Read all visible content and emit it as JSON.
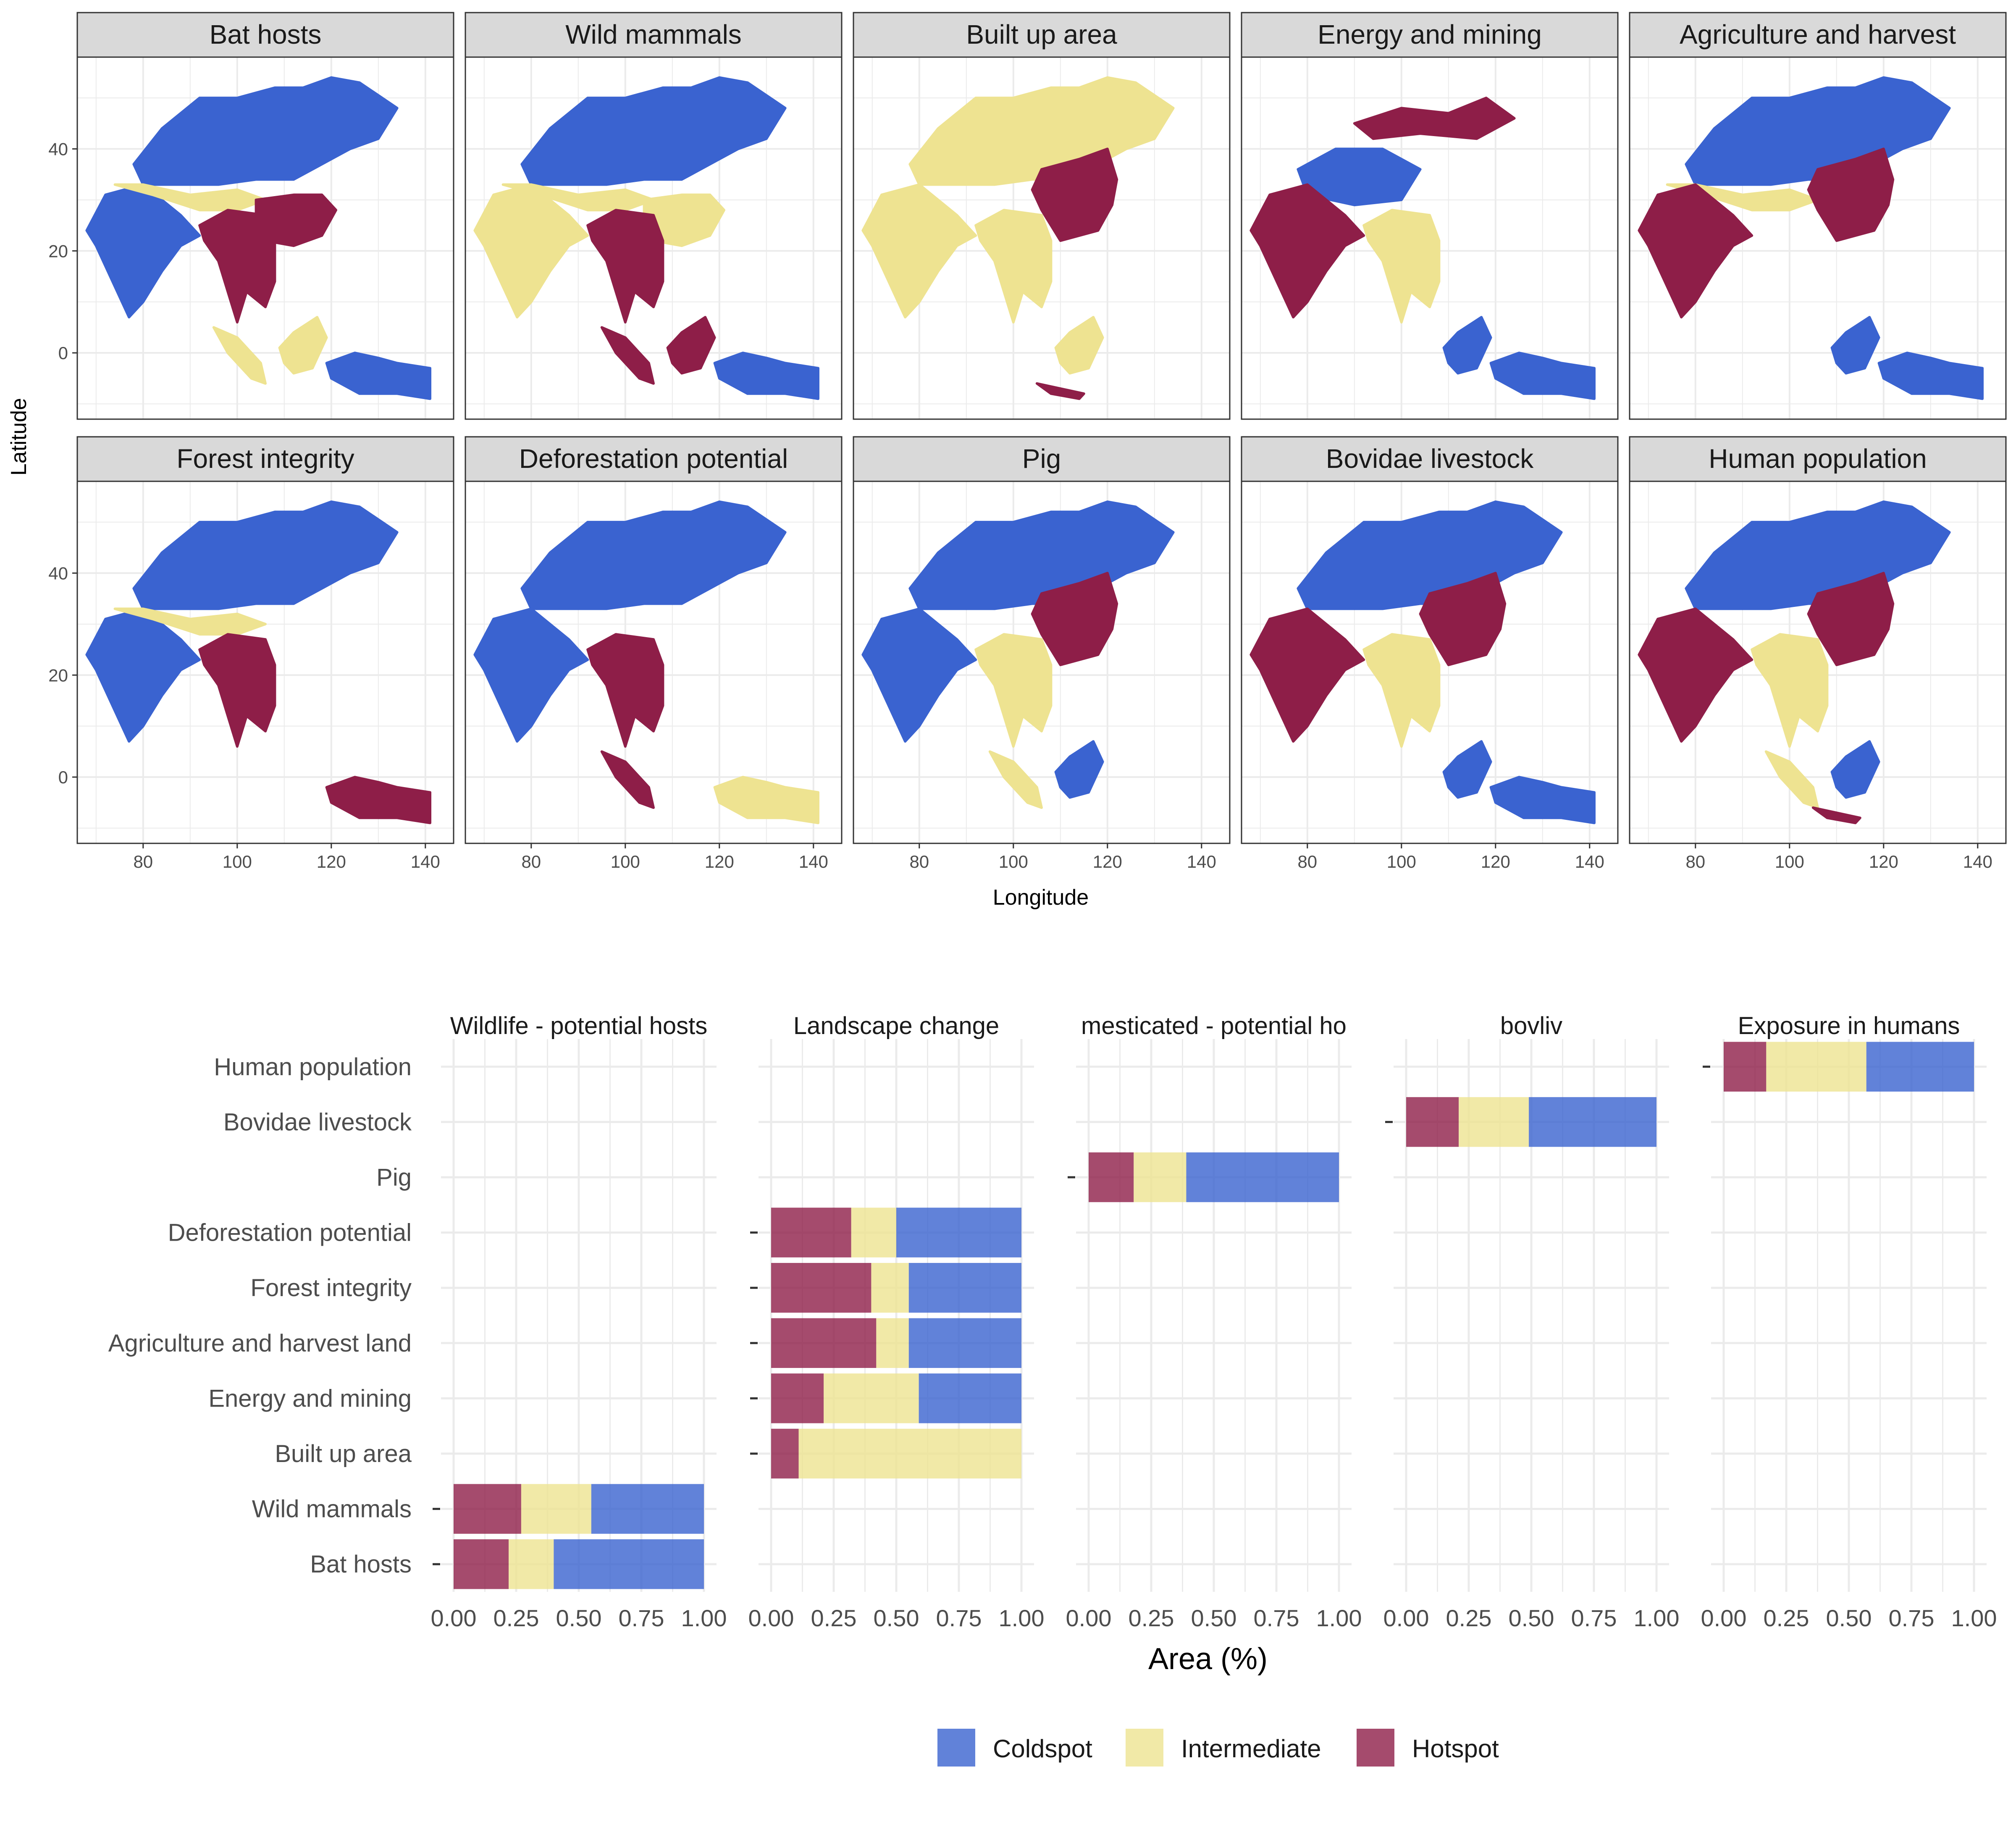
{
  "colors": {
    "coldspot": "#3A63D0",
    "intermediate": "#EEE391",
    "hotspot": "#8E1E48",
    "strip_bg": "#D9D9D9",
    "grid": "#EBEBEB",
    "panel_border": "#333333",
    "axis_text": "#4D4D4D"
  },
  "map_panel": {
    "xlabel": "Longitude",
    "ylabel": "Latitude",
    "x_ticks": [
      "80",
      "100",
      "120",
      "140"
    ],
    "y_ticks": [
      "40",
      "20",
      "0"
    ],
    "xlim": [
      66,
      146
    ],
    "ylim": [
      -13,
      58
    ],
    "panels": [
      {
        "title": "Bat hosts",
        "coldspot_regions": [
          "north",
          "india",
          "east_islands"
        ],
        "hotspot_regions": [
          "indochina",
          "south_china"
        ],
        "intermediate_regions": [
          "himalaya_band",
          "sumatra",
          "borneo"
        ]
      },
      {
        "title": "Wild mammals",
        "coldspot_regions": [
          "north",
          "east_islands"
        ],
        "hotspot_regions": [
          "indochina",
          "sumatra",
          "borneo"
        ],
        "intermediate_regions": [
          "india",
          "himalaya_band",
          "south_china"
        ]
      },
      {
        "title": "Built up area",
        "coldspot_regions": [],
        "hotspot_regions": [
          "east_china",
          "java"
        ],
        "intermediate_regions": [
          "north",
          "india",
          "indochina",
          "borneo"
        ]
      },
      {
        "title": "Energy and mining",
        "coldspot_regions": [
          "tibet",
          "borneo",
          "east_islands"
        ],
        "hotspot_regions": [
          "india",
          "north_patches"
        ],
        "intermediate_regions": [
          "indochina"
        ]
      },
      {
        "title": "Agriculture and harvest",
        "coldspot_regions": [
          "north",
          "borneo",
          "east_islands"
        ],
        "hotspot_regions": [
          "india",
          "east_china"
        ],
        "intermediate_regions": [
          "himalaya_band"
        ]
      },
      {
        "title": "Forest integrity",
        "coldspot_regions": [
          "north",
          "india"
        ],
        "hotspot_regions": [
          "indochina",
          "east_islands"
        ],
        "intermediate_regions": [
          "himalaya_band"
        ]
      },
      {
        "title": "Deforestation potential",
        "coldspot_regions": [
          "north",
          "india"
        ],
        "hotspot_regions": [
          "indochina",
          "sumatra"
        ],
        "intermediate_regions": [
          "east_islands"
        ]
      },
      {
        "title": "Pig",
        "coldspot_regions": [
          "north",
          "india",
          "borneo"
        ],
        "hotspot_regions": [
          "east_china"
        ],
        "intermediate_regions": [
          "indochina",
          "sumatra"
        ]
      },
      {
        "title": "Bovidae livestock",
        "coldspot_regions": [
          "north",
          "borneo",
          "east_islands"
        ],
        "hotspot_regions": [
          "india",
          "east_china"
        ],
        "intermediate_regions": [
          "indochina"
        ]
      },
      {
        "title": "Human population",
        "coldspot_regions": [
          "north",
          "borneo"
        ],
        "hotspot_regions": [
          "india",
          "east_china",
          "java"
        ],
        "intermediate_regions": [
          "indochina",
          "sumatra"
        ]
      }
    ]
  },
  "chart_data": {
    "type": "bar",
    "orientation": "horizontal",
    "stacked": true,
    "xlabel": "Area (%)",
    "ylabel": "",
    "xlim": [
      0,
      1
    ],
    "x_ticks": [
      "0.00",
      "0.25",
      "0.50",
      "0.75",
      "1.00"
    ],
    "categories": [
      "Human population",
      "Bovidae livestock",
      "Pig",
      "Deforestation potential",
      "Forest integrity",
      "Agriculture and harvest land",
      "Energy and mining",
      "Built up area",
      "Wild mammals",
      "Bat hosts"
    ],
    "facets": [
      {
        "title": "Wildlife - potential hosts",
        "items": [
          {
            "category": "Wild mammals",
            "hotspot": 0.27,
            "intermediate": 0.28,
            "coldspot": 0.45
          },
          {
            "category": "Bat hosts",
            "hotspot": 0.22,
            "intermediate": 0.18,
            "coldspot": 0.6
          }
        ]
      },
      {
        "title": "Landscape change",
        "items": [
          {
            "category": "Deforestation potential",
            "hotspot": 0.32,
            "intermediate": 0.18,
            "coldspot": 0.5
          },
          {
            "category": "Forest integrity",
            "hotspot": 0.4,
            "intermediate": 0.15,
            "coldspot": 0.45
          },
          {
            "category": "Agriculture and harvest land",
            "hotspot": 0.42,
            "intermediate": 0.13,
            "coldspot": 0.45
          },
          {
            "category": "Energy and mining",
            "hotspot": 0.21,
            "intermediate": 0.38,
            "coldspot": 0.41
          },
          {
            "category": "Built up area",
            "hotspot": 0.11,
            "intermediate": 0.89,
            "coldspot": 0.0
          }
        ]
      },
      {
        "title": "mesticated - potential ho",
        "items": [
          {
            "category": "Pig",
            "hotspot": 0.18,
            "intermediate": 0.21,
            "coldspot": 0.61
          }
        ]
      },
      {
        "title": "bovliv",
        "items": [
          {
            "category": "Bovidae livestock",
            "hotspot": 0.21,
            "intermediate": 0.28,
            "coldspot": 0.51
          }
        ]
      },
      {
        "title": "Exposure in humans",
        "items": [
          {
            "category": "Human population",
            "hotspot": 0.17,
            "intermediate": 0.4,
            "coldspot": 0.43
          }
        ]
      }
    ],
    "legend": {
      "position": "bottom",
      "entries": [
        {
          "key": "coldspot",
          "label": "Coldspot"
        },
        {
          "key": "intermediate",
          "label": "Intermediate"
        },
        {
          "key": "hotspot",
          "label": "Hotspot"
        }
      ]
    }
  }
}
